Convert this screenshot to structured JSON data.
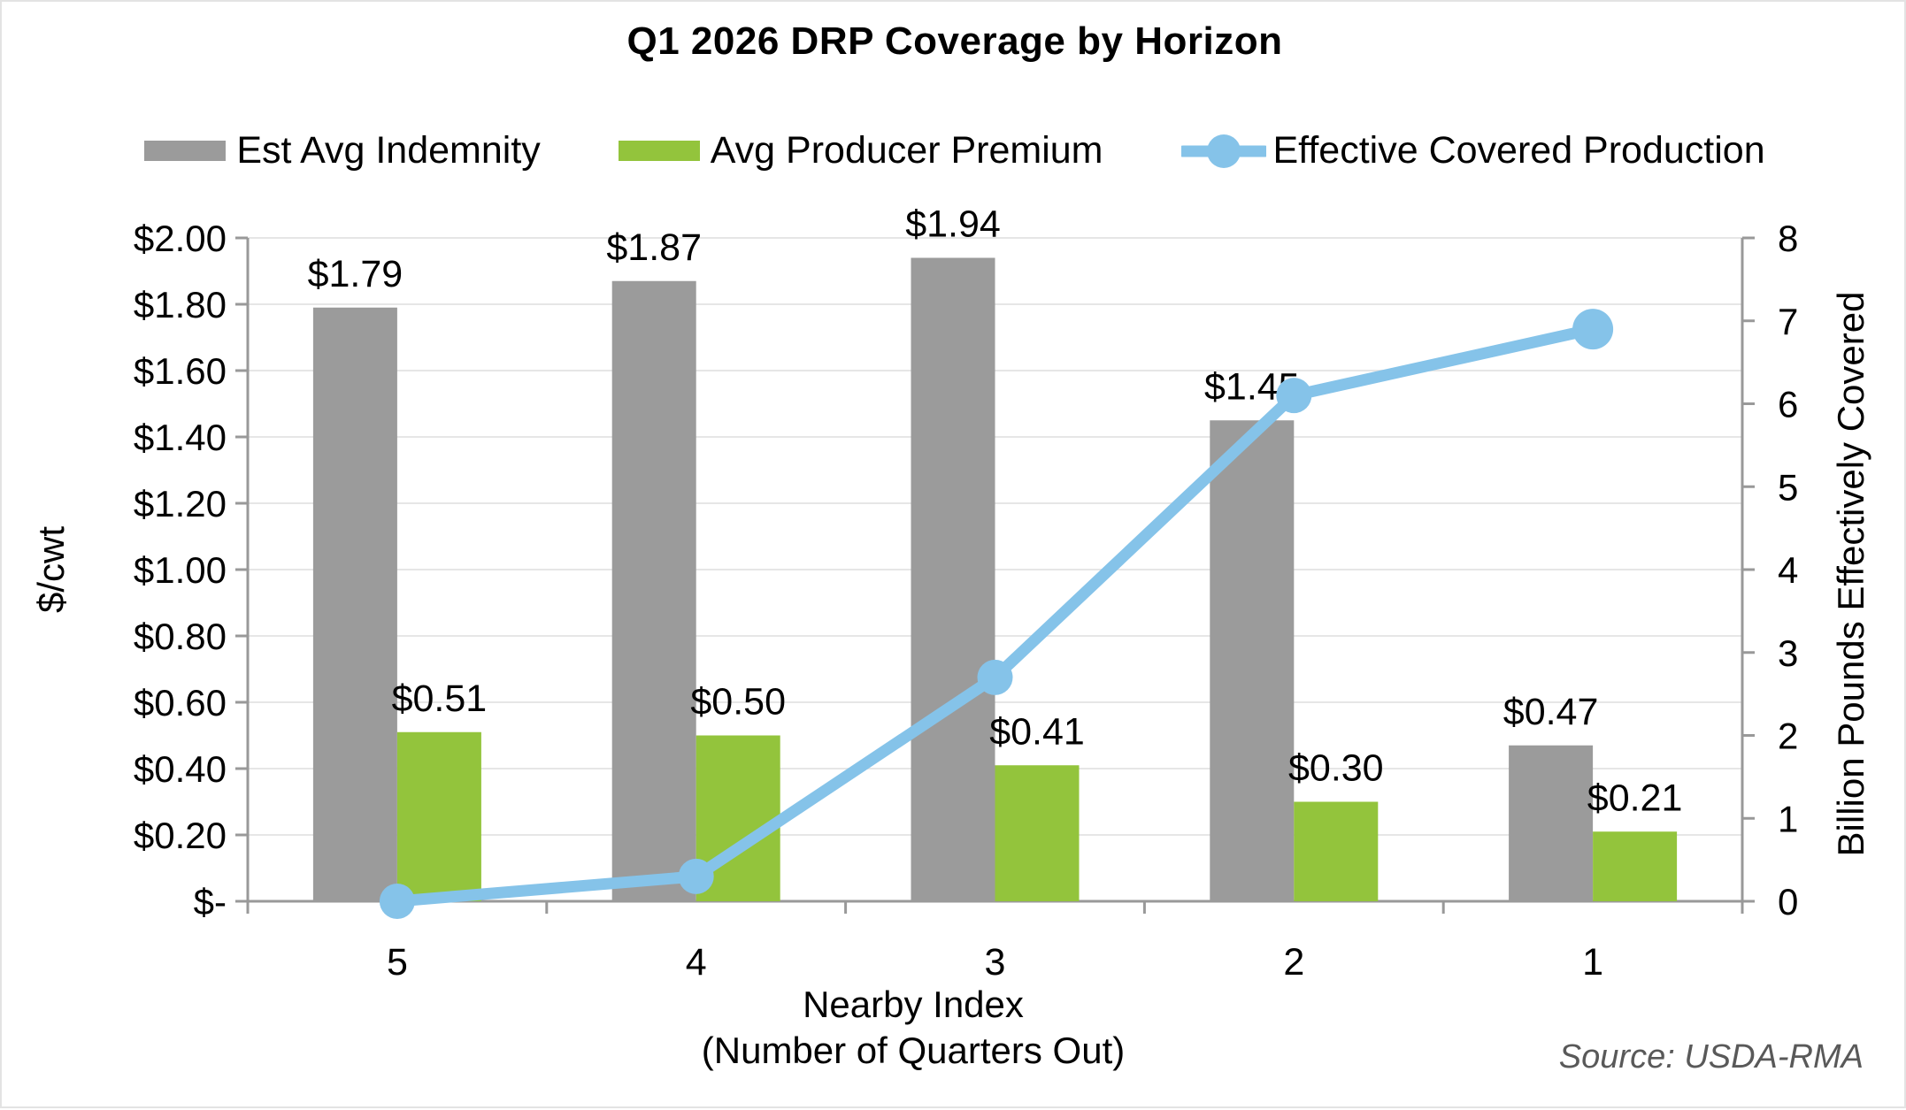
{
  "title": "Q1 2026 DRP Coverage by Horizon",
  "source": "Source: USDA-RMA",
  "colors": {
    "indemnity_gray": "#9B9B9B",
    "premium_green": "#93C43C",
    "production_blue": "#85C3E9",
    "axis_gray": "#999999",
    "gridline_gray": "#E6E6E6",
    "source_text": "#595959"
  },
  "legend": [
    {
      "label": "Est Avg Indemnity",
      "color": "#9B9B9B",
      "type": "bar"
    },
    {
      "label": "Avg Producer Premium",
      "color": "#93C43C",
      "type": "bar"
    },
    {
      "label": "Effective Covered Production",
      "color": "#85C3E9",
      "type": "line"
    }
  ],
  "chart_data": {
    "type": "bar",
    "subtype": "clustered bars with secondary-axis line",
    "title": "Q1 2026 DRP Coverage by Horizon",
    "categories": [
      "5",
      "4",
      "3",
      "2",
      "1"
    ],
    "series": [
      {
        "name": "Est Avg Indemnity",
        "type": "bar",
        "axis": "left",
        "color": "#9B9B9B",
        "values": [
          1.79,
          1.87,
          1.94,
          1.45,
          0.47
        ],
        "labels": [
          "$1.79",
          "$1.87",
          "$1.94",
          "$1.45",
          "$0.47"
        ]
      },
      {
        "name": "Avg Producer Premium",
        "type": "bar",
        "axis": "left",
        "color": "#93C43C",
        "values": [
          0.51,
          0.5,
          0.41,
          0.3,
          0.21
        ],
        "labels": [
          "$0.51",
          "$0.50",
          "$0.41",
          "$0.30",
          "$0.21"
        ]
      },
      {
        "name": "Effective Covered Production",
        "type": "line",
        "axis": "right",
        "color": "#85C3E9",
        "values": [
          0.0,
          0.3,
          2.7,
          6.1,
          6.9
        ]
      }
    ],
    "left_axis": {
      "title": "$/cwt",
      "min": 0,
      "max": 2.0,
      "ticks": [
        "$2.00",
        "$1.80",
        "$1.60",
        "$1.40",
        "$1.20",
        "$1.00",
        "$0.80",
        "$0.60",
        "$0.40",
        "$0.20",
        "$-"
      ]
    },
    "right_axis": {
      "title": "Billion Pounds Effectively Covered",
      "min": 0,
      "max": 8,
      "ticks": [
        "8",
        "7",
        "6",
        "5",
        "4",
        "3",
        "2",
        "1",
        "0"
      ]
    },
    "x_axis": {
      "title_line1": "Nearby Index",
      "title_line2": "(Number of Quarters Out)"
    },
    "grid": true,
    "legend_position": "top"
  }
}
